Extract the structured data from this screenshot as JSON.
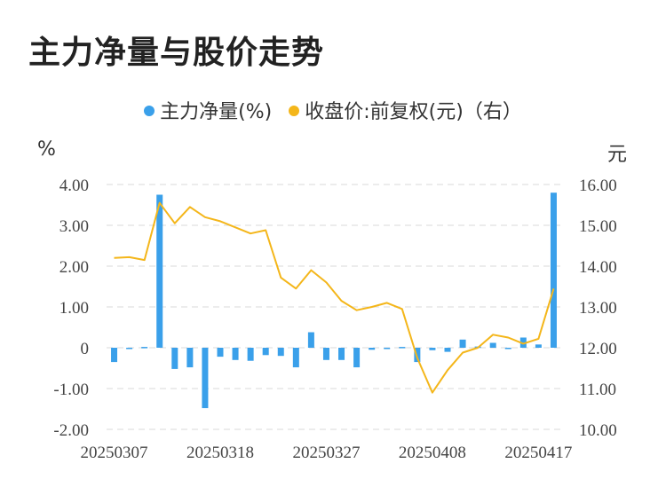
{
  "title": "主力净量与股价走势",
  "legend": [
    {
      "label": "主力净量(%)",
      "color": "#3aa0ea"
    },
    {
      "label": "收盘价:前复权(元)（右）",
      "color": "#f4b61a"
    }
  ],
  "chart_data": {
    "type": "bar+line",
    "title": "主力净量与股价走势",
    "left_unit": "%",
    "right_unit": "元",
    "left_axis": {
      "ticks": [
        "4.00",
        "3.00",
        "2.00",
        "1.00",
        "0",
        "-1.00",
        "-2.00"
      ],
      "range": [
        -2,
        4
      ]
    },
    "right_axis": {
      "ticks": [
        "16.00",
        "15.00",
        "14.00",
        "13.00",
        "12.00",
        "11.00",
        "10.00"
      ],
      "range": [
        10,
        16
      ]
    },
    "x_tick_labels": [
      "20250307",
      "20250318",
      "20250327",
      "20250408",
      "20250417"
    ],
    "x_tick_indices": [
      0,
      7,
      14,
      21,
      28
    ],
    "series": [
      {
        "name": "主力净量(%)",
        "type": "bar",
        "color": "#3aa0ea",
        "values": [
          -0.35,
          -0.02,
          0.02,
          3.75,
          -0.52,
          -0.48,
          -1.48,
          -0.22,
          -0.3,
          -0.32,
          -0.18,
          -0.2,
          -0.48,
          0.38,
          -0.3,
          -0.3,
          -0.48,
          -0.05,
          -0.03,
          0.02,
          -0.35,
          -0.06,
          -0.1,
          0.2,
          0.03,
          0.12,
          -0.02,
          0.25,
          0.08,
          3.8
        ]
      },
      {
        "name": "收盘价:前复权(元)（右）",
        "type": "line",
        "color": "#f4b61a",
        "values": [
          14.2,
          14.22,
          14.15,
          15.55,
          15.05,
          15.45,
          15.2,
          15.1,
          14.95,
          14.8,
          14.88,
          13.72,
          13.45,
          13.9,
          13.6,
          13.15,
          12.92,
          13.0,
          13.1,
          12.95,
          11.75,
          10.9,
          11.45,
          11.88,
          12.0,
          12.32,
          12.25,
          12.1,
          12.22,
          13.45
        ]
      }
    ]
  }
}
